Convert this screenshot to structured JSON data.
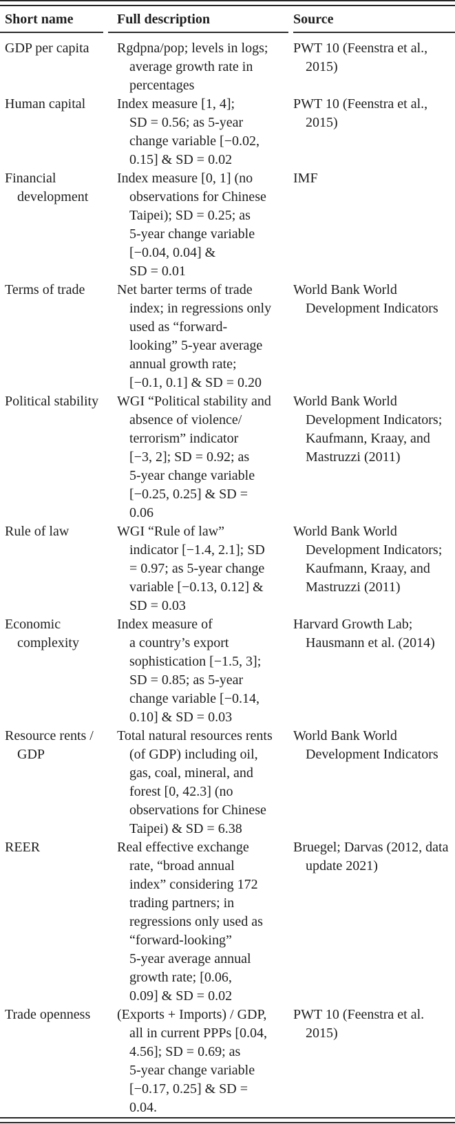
{
  "table": {
    "header": {
      "short_name": "Short name",
      "full_description": "Full description",
      "source": "Source"
    },
    "rows": [
      {
        "short_name": [
          "GDP per capita"
        ],
        "description": [
          "Rgdpna/pop; levels in logs;",
          "average growth rate in",
          "percentages"
        ],
        "source": [
          "PWT 10 (Feenstra et al.,",
          "2015)"
        ]
      },
      {
        "short_name": [
          "Human capital"
        ],
        "description": [
          "Index measure [1, 4];",
          "SD = 0.56; as 5-year",
          "change variable [−0.02,",
          "0.15] & SD = 0.02"
        ],
        "source": [
          "PWT 10 (Feenstra et al.,",
          "2015)"
        ]
      },
      {
        "short_name": [
          "Financial",
          "development"
        ],
        "description": [
          "Index measure [0, 1] (no",
          "observations for Chinese",
          "Taipei); SD = 0.25; as",
          "5-year change variable",
          "[−0.04, 0.04] &",
          "SD = 0.01"
        ],
        "source": [
          "IMF"
        ]
      },
      {
        "short_name": [
          "Terms of trade"
        ],
        "description": [
          "Net barter terms of trade",
          "index; in regressions only",
          "used as “forward-",
          "looking” 5-year average",
          "annual growth rate;",
          "[−0.1, 0.1] & SD = 0.20"
        ],
        "source": [
          "World Bank World",
          "Development Indicators"
        ]
      },
      {
        "short_name": [
          "Political stability"
        ],
        "description": [
          "WGI “Political stability and",
          "absence of violence/",
          "terrorism” indicator",
          "[−3, 2]; SD = 0.92; as",
          "5-year change variable",
          "[−0.25, 0.25] & SD =",
          "0.06"
        ],
        "source": [
          "World Bank World",
          "Development Indicators;",
          "Kaufmann, Kraay, and",
          "Mastruzzi (2011)"
        ]
      },
      {
        "short_name": [
          "Rule of law"
        ],
        "description": [
          "WGI “Rule of law”",
          "indicator [−1.4, 2.1]; SD",
          "= 0.97; as 5-year change",
          "variable [−0.13, 0.12] &",
          "SD = 0.03"
        ],
        "source": [
          "World Bank World",
          "Development Indicators;",
          "Kaufmann, Kraay, and",
          "Mastruzzi (2011)"
        ]
      },
      {
        "short_name": [
          "Economic",
          "complexity"
        ],
        "description": [
          "Index measure of",
          "a country’s export",
          "sophistication [−1.5, 3];",
          "SD = 0.85; as 5-year",
          "change variable [−0.14,",
          "0.10] & SD = 0.03"
        ],
        "source": [
          "Harvard Growth Lab;",
          "Hausmann et al. (2014)"
        ]
      },
      {
        "short_name": [
          "Resource rents /",
          "GDP"
        ],
        "description": [
          "Total natural resources rents",
          "(of GDP) including oil,",
          "gas, coal, mineral, and",
          "forest [0, 42.3] (no",
          "observations for Chinese",
          "Taipei) & SD = 6.38"
        ],
        "source": [
          "World Bank World",
          "Development Indicators"
        ]
      },
      {
        "short_name": [
          "REER"
        ],
        "description": [
          "Real effective exchange",
          "rate, “broad annual",
          "index” considering 172",
          "trading partners; in",
          "regressions only used as",
          "“forward-looking”",
          "5-year average annual",
          "growth rate; [0.06,",
          "0.09] & SD = 0.02"
        ],
        "source": [
          "Bruegel; Darvas (2012, data",
          "update 2021)"
        ]
      },
      {
        "short_name": [
          "Trade openness"
        ],
        "description": [
          "(Exports + Imports) / GDP,",
          "all in current PPPs [0.04,",
          "4.56]; SD = 0.69; as",
          "5-year change variable",
          "[−0.17, 0.25] & SD =",
          "0.04."
        ],
        "source": [
          "PWT 10 (Feenstra et al.",
          "2015)"
        ]
      }
    ]
  }
}
